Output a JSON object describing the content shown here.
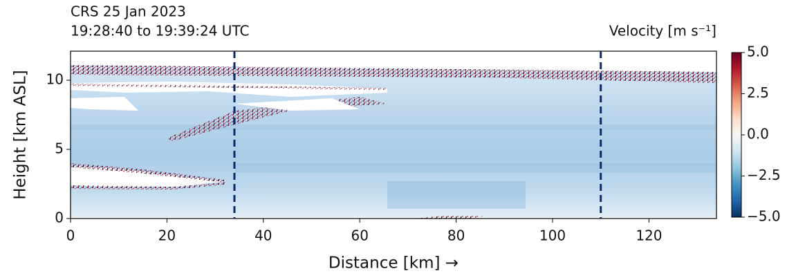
{
  "chart_data": {
    "type": "curtain",
    "title": [
      "CRS 25 Jan 2023",
      "19:28:40 to 19:39:24 UTC"
    ],
    "colorbar_label": "Velocity [m s⁻¹]",
    "xlabel": "Distance [km] →",
    "ylabel": "Height [km ASL]",
    "xlim": [
      0,
      134
    ],
    "ylim": [
      0,
      12.1
    ],
    "xticks": [
      0,
      20,
      40,
      60,
      80,
      100,
      120
    ],
    "yticks": [
      0,
      5,
      10
    ],
    "vlines": [
      34,
      110
    ],
    "vline_color": "#0b2a6b",
    "colormap": "RdBu_r",
    "clim": [
      -5,
      5
    ],
    "cticks": [
      {
        "value": 5,
        "label": "5.0"
      },
      {
        "value": 2.5,
        "label": "2.5"
      },
      {
        "value": 0,
        "label": "0.0"
      },
      {
        "value": -2.5,
        "label": "−2.5"
      },
      {
        "value": -5,
        "label": "−5.0"
      }
    ]
  }
}
